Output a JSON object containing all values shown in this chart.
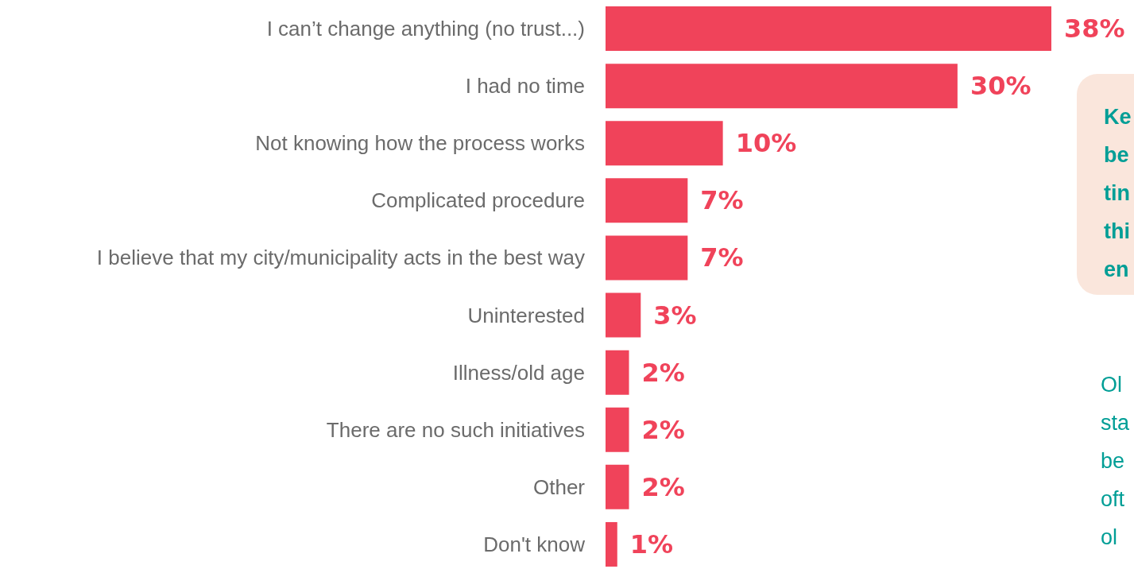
{
  "chart_data": {
    "type": "bar",
    "orientation": "horizontal",
    "categories": [
      "I can’t change anything (no trust...)",
      "I had no time",
      "Not knowing how the process works",
      "Complicated procedure",
      "I believe that my city/municipality acts in the best way",
      "Uninterested",
      "Illness/old age",
      "There are no such initiatives",
      "Other",
      "Don't know"
    ],
    "values": [
      38,
      30,
      10,
      7,
      7,
      3,
      2,
      2,
      2,
      1
    ],
    "value_labels": [
      "38%",
      "30%",
      "10%",
      "7%",
      "7%",
      "3%",
      "2%",
      "2%",
      "2%",
      "1%"
    ],
    "color": "#f0435a",
    "annotations": [
      "Ke\nbe\ntin\nthi\nen",
      "Ol\nsta\nbe\noft\nol"
    ],
    "grid": false
  }
}
